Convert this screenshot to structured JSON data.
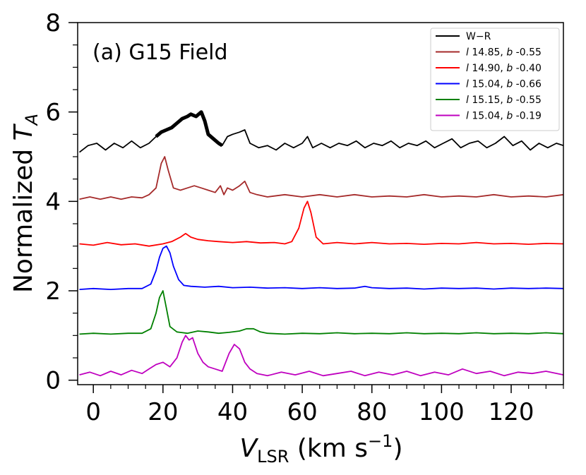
{
  "chart_data": {
    "type": "line",
    "title": "(a) G15 Field",
    "xlabel": {
      "main": "V",
      "sub": "LSR",
      "rest": " (km s",
      "sup": "−1",
      "close": ")"
    },
    "ylabel": {
      "main": "Normalized ",
      "var": "T",
      "sub": "A"
    },
    "xlim": [
      -4.5,
      135
    ],
    "ylim": [
      -0.1,
      8
    ],
    "xticks": [
      0,
      20,
      40,
      60,
      80,
      100,
      120
    ],
    "xtick_labels": [
      "0",
      "20",
      "40",
      "60",
      "80",
      "100",
      "120"
    ],
    "yticks": [
      0,
      2,
      4,
      6,
      8
    ],
    "ytick_labels": [
      "0",
      "2",
      "4",
      "6",
      "8"
    ],
    "legend_position": "top-right",
    "series": [
      {
        "name": "W−R",
        "legend": {
          "pre": "",
          "l": "",
          "mid": "",
          "b": "",
          "post": "W−R"
        },
        "color": "#000000",
        "x": [
          -4,
          -1.5,
          1,
          3.5,
          6,
          8.5,
          11,
          13.5,
          16,
          18,
          19.5,
          21,
          22.5,
          24,
          25.5,
          27,
          28,
          29.5,
          31,
          32,
          33,
          34.5,
          36,
          37,
          38.5,
          40,
          42,
          43.5,
          45,
          47.5,
          50,
          52.5,
          55,
          57.5,
          60,
          61.5,
          63,
          65.5,
          68,
          70.5,
          73,
          75.5,
          78,
          80.5,
          83,
          85.5,
          88,
          90.5,
          93,
          95.5,
          98,
          100.5,
          103,
          105.5,
          108,
          110.5,
          113,
          115.5,
          118,
          120.5,
          123,
          125.5,
          128,
          130.5,
          133,
          135
        ],
        "y": [
          5.1,
          5.25,
          5.3,
          5.15,
          5.3,
          5.2,
          5.35,
          5.2,
          5.3,
          5.45,
          5.55,
          5.6,
          5.65,
          5.75,
          5.85,
          5.9,
          5.95,
          5.9,
          6.0,
          5.8,
          5.5,
          5.4,
          5.3,
          5.25,
          5.45,
          5.5,
          5.55,
          5.6,
          5.3,
          5.2,
          5.25,
          5.15,
          5.3,
          5.2,
          5.3,
          5.45,
          5.2,
          5.3,
          5.2,
          5.3,
          5.25,
          5.35,
          5.2,
          5.3,
          5.25,
          5.35,
          5.2,
          5.3,
          5.25,
          5.35,
          5.2,
          5.3,
          5.4,
          5.2,
          5.3,
          5.35,
          5.2,
          5.3,
          5.45,
          5.25,
          5.35,
          5.15,
          5.3,
          5.2,
          5.3,
          5.25
        ],
        "bold_range": [
          18,
          38
        ]
      },
      {
        "name": "l 14.85, b -0.55",
        "legend": {
          "pre": "",
          "l": "l",
          "mid": " 14.85, ",
          "b": "b",
          "post": " -0.55"
        },
        "color": "#a52a2a",
        "x": [
          -4,
          -1,
          2,
          5,
          8,
          11,
          14,
          16,
          18,
          19.5,
          20.5,
          21.5,
          23,
          25,
          27,
          29,
          31,
          33,
          35,
          36.5,
          37.5,
          38.5,
          40,
          42,
          43.5,
          45,
          47,
          50,
          55,
          60,
          65,
          70,
          75,
          80,
          85,
          90,
          95,
          100,
          105,
          110,
          115,
          120,
          125,
          130,
          135
        ],
        "y": [
          4.05,
          4.1,
          4.05,
          4.1,
          4.05,
          4.1,
          4.08,
          4.15,
          4.3,
          4.85,
          5.0,
          4.7,
          4.3,
          4.25,
          4.3,
          4.35,
          4.3,
          4.25,
          4.2,
          4.35,
          4.15,
          4.3,
          4.25,
          4.35,
          4.45,
          4.2,
          4.15,
          4.1,
          4.15,
          4.1,
          4.15,
          4.1,
          4.15,
          4.1,
          4.12,
          4.1,
          4.15,
          4.1,
          4.12,
          4.1,
          4.15,
          4.1,
          4.12,
          4.1,
          4.15
        ]
      },
      {
        "name": "l 14.90, b -0.40",
        "legend": {
          "pre": "",
          "l": "l",
          "mid": " 14.90, ",
          "b": "b",
          "post": " -0.40"
        },
        "color": "#ff0000",
        "x": [
          -4,
          0,
          4,
          8,
          12,
          16,
          20,
          22.5,
          25,
          26.5,
          28,
          30,
          33,
          36,
          40,
          44,
          48,
          52,
          55,
          57,
          59,
          60.5,
          61.5,
          62.5,
          64,
          66,
          70,
          75,
          80,
          85,
          90,
          95,
          100,
          105,
          110,
          115,
          120,
          125,
          130,
          135
        ],
        "y": [
          3.05,
          3.02,
          3.08,
          3.03,
          3.05,
          3.0,
          3.05,
          3.1,
          3.2,
          3.28,
          3.2,
          3.15,
          3.12,
          3.1,
          3.08,
          3.1,
          3.07,
          3.08,
          3.05,
          3.1,
          3.4,
          3.85,
          4.0,
          3.75,
          3.2,
          3.05,
          3.08,
          3.05,
          3.08,
          3.05,
          3.06,
          3.04,
          3.06,
          3.05,
          3.08,
          3.05,
          3.06,
          3.04,
          3.06,
          3.05
        ]
      },
      {
        "name": "l 15.04, b -0.66",
        "legend": {
          "pre": "",
          "l": "l",
          "mid": " 15.04, ",
          "b": "b",
          "post": " -0.66"
        },
        "color": "#0000ff",
        "x": [
          -4,
          0,
          5,
          10,
          14,
          16.5,
          18,
          19,
          20,
          21,
          22,
          23,
          24.5,
          26,
          28,
          32,
          36,
          40,
          45,
          50,
          55,
          60,
          65,
          70,
          75,
          78,
          80,
          85,
          90,
          95,
          100,
          105,
          110,
          115,
          120,
          125,
          130,
          135
        ],
        "y": [
          2.03,
          2.05,
          2.03,
          2.05,
          2.05,
          2.15,
          2.45,
          2.75,
          2.95,
          3.0,
          2.85,
          2.55,
          2.25,
          2.12,
          2.1,
          2.08,
          2.1,
          2.07,
          2.08,
          2.06,
          2.07,
          2.05,
          2.07,
          2.05,
          2.06,
          2.1,
          2.07,
          2.05,
          2.06,
          2.04,
          2.06,
          2.05,
          2.06,
          2.04,
          2.06,
          2.05,
          2.06,
          2.05
        ]
      },
      {
        "name": "l 15.15, b -0.55",
        "legend": {
          "pre": "",
          "l": "l",
          "mid": " 15.15, ",
          "b": "b",
          "post": " -0.55"
        },
        "color": "#008000",
        "x": [
          -4,
          0,
          5,
          10,
          14,
          16.5,
          18,
          19,
          20,
          21,
          22,
          24,
          27,
          30,
          33,
          36,
          39,
          42,
          44,
          46,
          48,
          50,
          55,
          60,
          65,
          70,
          75,
          80,
          85,
          90,
          95,
          100,
          105,
          110,
          115,
          120,
          125,
          130,
          135
        ],
        "y": [
          1.03,
          1.05,
          1.03,
          1.05,
          1.05,
          1.15,
          1.5,
          1.85,
          2.0,
          1.6,
          1.2,
          1.08,
          1.05,
          1.1,
          1.08,
          1.05,
          1.07,
          1.1,
          1.15,
          1.15,
          1.08,
          1.05,
          1.03,
          1.05,
          1.04,
          1.06,
          1.04,
          1.05,
          1.04,
          1.06,
          1.04,
          1.05,
          1.04,
          1.06,
          1.04,
          1.05,
          1.04,
          1.06,
          1.04
        ]
      },
      {
        "name": "l 15.04, b -0.19",
        "legend": {
          "pre": "",
          "l": "l",
          "mid": " 15.04, ",
          "b": "b",
          "post": " -0.19"
        },
        "color": "#bf00bf",
        "x": [
          -4,
          -1,
          2,
          5,
          8,
          11,
          14,
          16,
          18,
          20,
          22,
          24,
          25.5,
          26.5,
          27.5,
          28.5,
          30,
          31.5,
          33,
          35,
          37,
          39,
          40.5,
          42,
          43.5,
          45,
          47,
          50,
          54,
          58,
          62,
          66,
          70,
          74,
          78,
          82,
          86,
          90,
          94,
          98,
          102,
          106,
          110,
          114,
          118,
          122,
          126,
          130,
          135
        ],
        "y": [
          0.12,
          0.18,
          0.1,
          0.2,
          0.12,
          0.22,
          0.15,
          0.25,
          0.35,
          0.4,
          0.3,
          0.5,
          0.85,
          1.0,
          0.9,
          0.95,
          0.6,
          0.4,
          0.3,
          0.25,
          0.2,
          0.6,
          0.8,
          0.7,
          0.4,
          0.25,
          0.15,
          0.1,
          0.18,
          0.12,
          0.2,
          0.1,
          0.15,
          0.2,
          0.1,
          0.18,
          0.12,
          0.2,
          0.1,
          0.18,
          0.12,
          0.25,
          0.15,
          0.2,
          0.1,
          0.18,
          0.15,
          0.2,
          0.12
        ]
      }
    ]
  }
}
